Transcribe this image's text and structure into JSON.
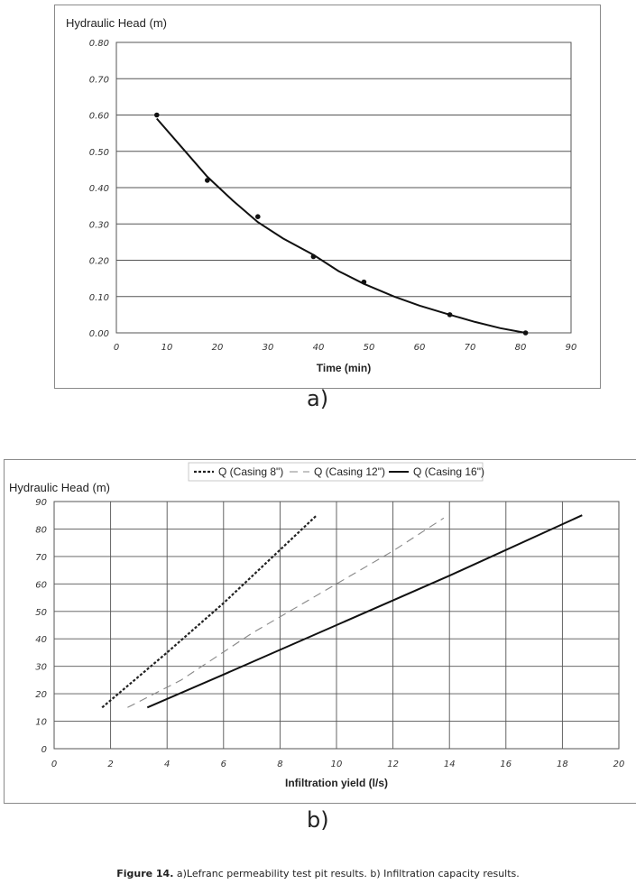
{
  "panel_a": {
    "label": "a)"
  },
  "panel_b": {
    "label": "b)"
  },
  "caption": {
    "bold": "Figure 14.",
    "text": " a)Lefranc permeability test pit results. b) Infiltration capacity results."
  },
  "chart_data": [
    {
      "type": "scatter",
      "title": "",
      "ylabel": "Hydraulic Head (m)",
      "xlabel": "Time (min)",
      "xlim": [
        0,
        90
      ],
      "ylim": [
        0,
        0.8
      ],
      "xticks": [
        "0",
        "10",
        "20",
        "30",
        "40",
        "50",
        "60",
        "70",
        "80",
        "90"
      ],
      "yticks": [
        "0.00",
        "0.10",
        "0.20",
        "0.30",
        "0.40",
        "0.50",
        "0.60",
        "0.70",
        "0.80"
      ],
      "grid": "horizontal",
      "points": [
        {
          "x": 8,
          "y": 0.6
        },
        {
          "x": 18,
          "y": 0.42
        },
        {
          "x": 28,
          "y": 0.32
        },
        {
          "x": 39,
          "y": 0.21
        },
        {
          "x": 49,
          "y": 0.14
        },
        {
          "x": 66,
          "y": 0.05
        },
        {
          "x": 81,
          "y": 0.0
        }
      ],
      "trendline": [
        {
          "x": 8,
          "y": 0.59
        },
        {
          "x": 13,
          "y": 0.51
        },
        {
          "x": 18,
          "y": 0.43
        },
        {
          "x": 23,
          "y": 0.365
        },
        {
          "x": 28,
          "y": 0.305
        },
        {
          "x": 33,
          "y": 0.26
        },
        {
          "x": 39,
          "y": 0.215
        },
        {
          "x": 44,
          "y": 0.17
        },
        {
          "x": 49,
          "y": 0.135
        },
        {
          "x": 55,
          "y": 0.1
        },
        {
          "x": 60,
          "y": 0.075
        },
        {
          "x": 66,
          "y": 0.05
        },
        {
          "x": 71,
          "y": 0.03
        },
        {
          "x": 76,
          "y": 0.013
        },
        {
          "x": 81,
          "y": 0.0
        }
      ]
    },
    {
      "type": "line",
      "title": "",
      "ylabel": "Hydraulic Head (m)",
      "xlabel": "Infiltration yield (l/s)",
      "xlim": [
        0,
        20
      ],
      "ylim": [
        0,
        90
      ],
      "xticks": [
        "0",
        "2",
        "4",
        "6",
        "8",
        "10",
        "12",
        "14",
        "16",
        "18",
        "20"
      ],
      "yticks": [
        "0",
        "10",
        "20",
        "30",
        "40",
        "50",
        "60",
        "70",
        "80",
        "90"
      ],
      "grid": "both",
      "legend": "top",
      "series": [
        {
          "name": "Q (Casing 8\")",
          "style": "dotted",
          "color": "#222222",
          "points": [
            {
              "x": 1.7,
              "y": 15
            },
            {
              "x": 4.0,
              "y": 35
            },
            {
              "x": 6.0,
              "y": 53
            },
            {
              "x": 9.3,
              "y": 85
            }
          ]
        },
        {
          "name": "Q (Casing 12\")",
          "style": "dashed",
          "color": "#888888",
          "points": [
            {
              "x": 2.6,
              "y": 15
            },
            {
              "x": 4.5,
              "y": 25
            },
            {
              "x": 7.0,
              "y": 42
            },
            {
              "x": 10.0,
              "y": 60
            },
            {
              "x": 12.0,
              "y": 72
            },
            {
              "x": 13.8,
              "y": 84
            }
          ]
        },
        {
          "name": "Q (Casing 16\")",
          "style": "solid",
          "color": "#111111",
          "points": [
            {
              "x": 3.3,
              "y": 15
            },
            {
              "x": 6.0,
              "y": 27
            },
            {
              "x": 10.0,
              "y": 45
            },
            {
              "x": 14.0,
              "y": 63
            },
            {
              "x": 18.7,
              "y": 85
            }
          ]
        }
      ]
    }
  ]
}
